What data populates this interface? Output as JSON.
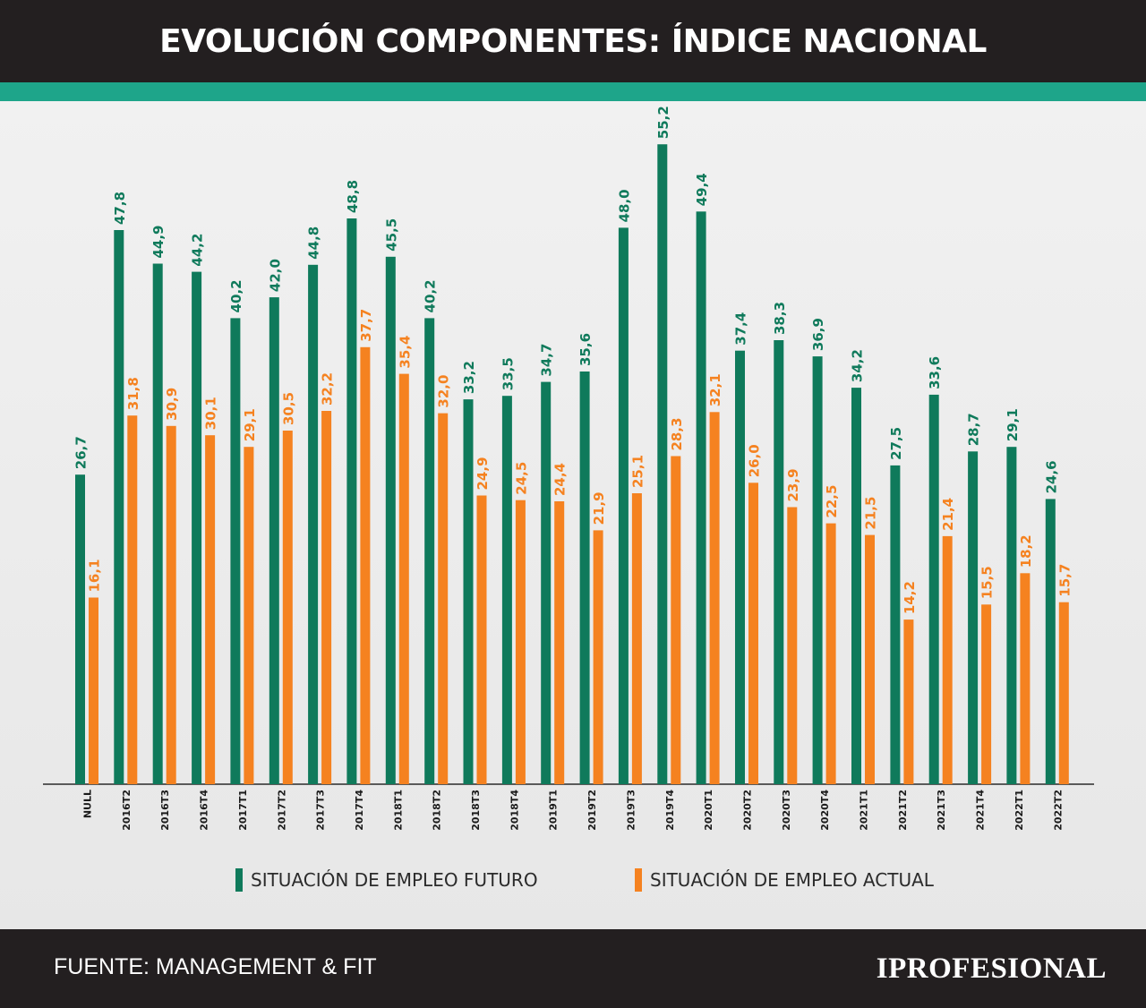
{
  "header": {
    "title": "EVOLUCIÓN COMPONENTES: ÍNDICE NACIONAL"
  },
  "colors": {
    "futuro": "#0f7a5b",
    "actual": "#f58220",
    "accent": "#1ea58a",
    "dark": "#231f20"
  },
  "legend": {
    "futuro_label": "SITUACIÓN DE EMPLEO FUTURO",
    "actual_label": "SITUACIÓN DE EMPLEO ACTUAL"
  },
  "footer": {
    "source": "FUENTE: MANAGEMENT & FIT",
    "brand": "IPROFESIONAL"
  },
  "chart_data": {
    "type": "bar",
    "title": "EVOLUCIÓN COMPONENTES: ÍNDICE NACIONAL",
    "categories": [
      "NULL",
      "2016T2",
      "2016T3",
      "2016T4",
      "2017T1",
      "2017T2",
      "2017T3",
      "2017T4",
      "2018T1",
      "2018T2",
      "2018T3",
      "2018T4",
      "2019T1",
      "2019T2",
      "2019T3",
      "2019T4",
      "2020T1",
      "2020T2",
      "2020T3",
      "2020T4",
      "2021T1",
      "2021T2",
      "2021T3",
      "2021T4",
      "2022T1",
      "2022T2"
    ],
    "series": [
      {
        "name": "SITUACIÓN DE EMPLEO FUTURO",
        "values": [
          26.7,
          47.8,
          44.9,
          44.2,
          40.2,
          42.0,
          44.8,
          48.8,
          45.5,
          40.2,
          33.2,
          33.5,
          34.7,
          35.6,
          48.0,
          55.2,
          49.4,
          37.4,
          38.3,
          36.9,
          34.2,
          27.5,
          33.6,
          28.7,
          29.1,
          24.6
        ],
        "labels": [
          "26,7",
          "47,8",
          "44,9",
          "44,2",
          "40,2",
          "42,0",
          "44,8",
          "48,8",
          "45,5",
          "40,2",
          "33,2",
          "33,5",
          "34,7",
          "35,6",
          "48,0",
          "55,2",
          "49,4",
          "37,4",
          "38,3",
          "36,9",
          "34,2",
          "27,5",
          "33,6",
          "28,7",
          "29,1",
          "24,6"
        ]
      },
      {
        "name": "SITUACIÓN DE EMPLEO ACTUAL",
        "values": [
          16.1,
          31.8,
          30.9,
          30.1,
          29.1,
          30.5,
          32.2,
          37.7,
          35.4,
          32.0,
          24.9,
          24.5,
          24.4,
          21.9,
          25.1,
          28.3,
          32.1,
          26.0,
          23.9,
          22.5,
          21.5,
          14.2,
          21.4,
          15.5,
          18.2,
          15.7
        ],
        "labels": [
          "16,1",
          "31,8",
          "30,9",
          "30,1",
          "29,1",
          "30,5",
          "32,2",
          "37,7",
          "35,4",
          "32,0",
          "24,9",
          "24,5",
          "24,4",
          "21,9",
          "25,1",
          "28,3",
          "32,1",
          "26,0",
          "23,9",
          "22,5",
          "21,5",
          "14,2",
          "21,4",
          "15,5",
          "18,2",
          "15,7"
        ]
      }
    ],
    "ylim": [
      0,
      57
    ],
    "grid": false,
    "legend_position": "bottom"
  }
}
